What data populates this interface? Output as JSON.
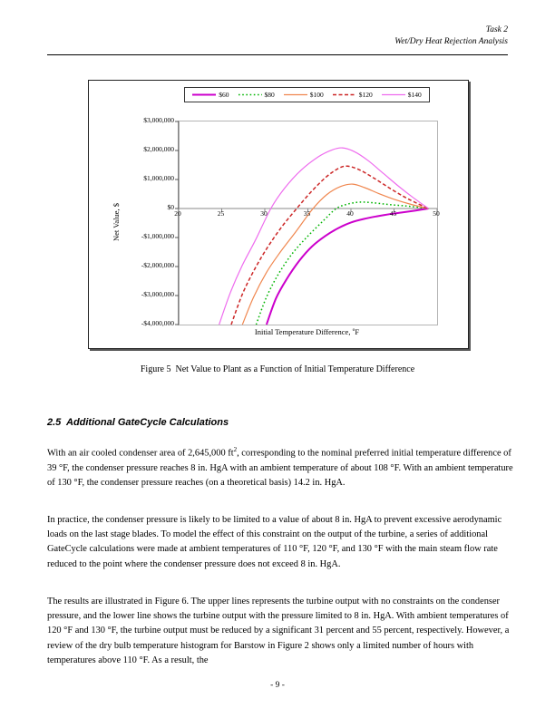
{
  "page": {
    "header": {
      "line1": "Task 2",
      "line2": "Wet/Dry Heat Rejection Analysis"
    },
    "footer": {
      "page_number": "- 9 -"
    }
  },
  "figure": {
    "caption": "Figure 5  Net Value to Plant as a Function of Initial Temperature Difference"
  },
  "chart_data": {
    "type": "line",
    "title": "",
    "xlabel": "Initial Temperature Difference, °F",
    "xlabel_parts": {
      "pre": "Initial Temperature Difference, ",
      "sup": "o",
      "post": "F"
    },
    "ylabel": "Net Value, $",
    "xlim": [
      20,
      50
    ],
    "ylim": [
      -4000000,
      3000000
    ],
    "x_ticks": [
      "20",
      "25",
      "30",
      "35",
      "40",
      "45",
      "50"
    ],
    "y_ticks": [
      "$3,000,000",
      "$2,000,000",
      "$1,000,000",
      "$0",
      "-$1,000,000",
      "-$2,000,000",
      "-$3,000,000",
      "-$4,000,000"
    ],
    "grid": false,
    "legend_position": "top-center",
    "series": [
      {
        "name": "$60",
        "color": "#CC00CC",
        "style": "solid",
        "width": 2,
        "points": [
          [
            30.2,
            -4000000
          ],
          [
            31.3,
            -3100000
          ],
          [
            32.5,
            -2450000
          ],
          [
            34,
            -1800000
          ],
          [
            35.5,
            -1300000
          ],
          [
            37,
            -950000
          ],
          [
            38.5,
            -680000
          ],
          [
            40,
            -480000
          ],
          [
            41.5,
            -360000
          ],
          [
            43,
            -270000
          ],
          [
            44.5,
            -195000
          ],
          [
            46,
            -130000
          ],
          [
            47.5,
            -70000
          ],
          [
            49,
            0
          ]
        ]
      },
      {
        "name": "$80",
        "color": "#00B400",
        "style": "dotted",
        "width": 1.5,
        "points": [
          [
            29,
            -4000000
          ],
          [
            30.2,
            -3050000
          ],
          [
            31.6,
            -2250000
          ],
          [
            33.2,
            -1550000
          ],
          [
            35,
            -950000
          ],
          [
            36.8,
            -420000
          ],
          [
            38.3,
            0
          ],
          [
            39.6,
            150000
          ],
          [
            41,
            220000
          ],
          [
            42.5,
            200000
          ],
          [
            44,
            150000
          ],
          [
            45.5,
            110000
          ],
          [
            47,
            70000
          ],
          [
            49,
            0
          ]
        ]
      },
      {
        "name": "$100",
        "color": "#F0874F",
        "style": "solid",
        "width": 1.2,
        "points": [
          [
            27.4,
            -4000000
          ],
          [
            28.7,
            -3050000
          ],
          [
            30.2,
            -2200000
          ],
          [
            31.8,
            -1500000
          ],
          [
            33.6,
            -800000
          ],
          [
            35.6,
            0
          ],
          [
            37.2,
            480000
          ],
          [
            38.8,
            760000
          ],
          [
            40.2,
            840000
          ],
          [
            41.6,
            720000
          ],
          [
            43.2,
            520000
          ],
          [
            45,
            320000
          ],
          [
            47,
            140000
          ],
          [
            49,
            0
          ]
        ]
      },
      {
        "name": "$120",
        "color": "#CC2626",
        "style": "dashed",
        "width": 1.5,
        "points": [
          [
            26.1,
            -4000000
          ],
          [
            27.4,
            -2950000
          ],
          [
            28.9,
            -2050000
          ],
          [
            30.4,
            -1300000
          ],
          [
            32,
            -620000
          ],
          [
            33.7,
            0
          ],
          [
            35.4,
            580000
          ],
          [
            37.1,
            1080000
          ],
          [
            38.6,
            1390000
          ],
          [
            39.6,
            1460000
          ],
          [
            41,
            1330000
          ],
          [
            42.6,
            1060000
          ],
          [
            44.4,
            720000
          ],
          [
            46.2,
            400000
          ],
          [
            47.8,
            160000
          ],
          [
            49,
            0
          ]
        ]
      },
      {
        "name": "$140",
        "color": "#EE6CEE",
        "style": "solid",
        "width": 1.2,
        "points": [
          [
            24.7,
            -4000000
          ],
          [
            26,
            -2900000
          ],
          [
            27.4,
            -1950000
          ],
          [
            28.9,
            -1100000
          ],
          [
            30.7,
            0
          ],
          [
            32.3,
            700000
          ],
          [
            34.2,
            1320000
          ],
          [
            36.2,
            1780000
          ],
          [
            37.8,
            2020000
          ],
          [
            39,
            2090000
          ],
          [
            40.4,
            1960000
          ],
          [
            42,
            1650000
          ],
          [
            43.8,
            1200000
          ],
          [
            45.6,
            750000
          ],
          [
            47.2,
            380000
          ],
          [
            49,
            0
          ]
        ]
      }
    ]
  },
  "section": {
    "heading": "2.5  Additional GateCycle Calculations",
    "para1": {
      "part1": "With an air cooled condenser area of 2,645,000 ft",
      "sup": "2",
      "part2": ", corresponding to the nominal preferred initial temperature difference of 39 °F, the condenser pressure reaches 8 in. HgA with an ambient temperature of about 108 °F.  With an ambient temperature of 130 °F, the condenser pressure reaches (on a theoretical basis) 14.2 in. HgA."
    },
    "para2": "In practice, the condenser pressure is likely to be limited to a value of about 8 in. HgA to prevent excessive aerodynamic loads on the last stage blades.  To model the effect of this constraint on the output of the turbine, a series of additional GateCycle calculations were made at ambient temperatures of 110 °F, 120 °F, and 130 °F with the main steam flow rate reduced to the point where the condenser pressure does not exceed 8 in. HgA.",
    "para3": "The results are illustrated in Figure 6.  The upper lines represents the turbine output with no constraints on the condenser pressure, and the lower line shows the turbine output with the pressure limited to 8 in. HgA.  With ambient temperatures of 120 °F and 130 °F, the turbine output must be reduced by a significant 31 percent and 55 percent, respectively.  However, a review of the dry bulb temperature histogram for Barstow in Figure 2 shows only a limited number of hours with temperatures above 110 °F.  As a result, the"
  }
}
